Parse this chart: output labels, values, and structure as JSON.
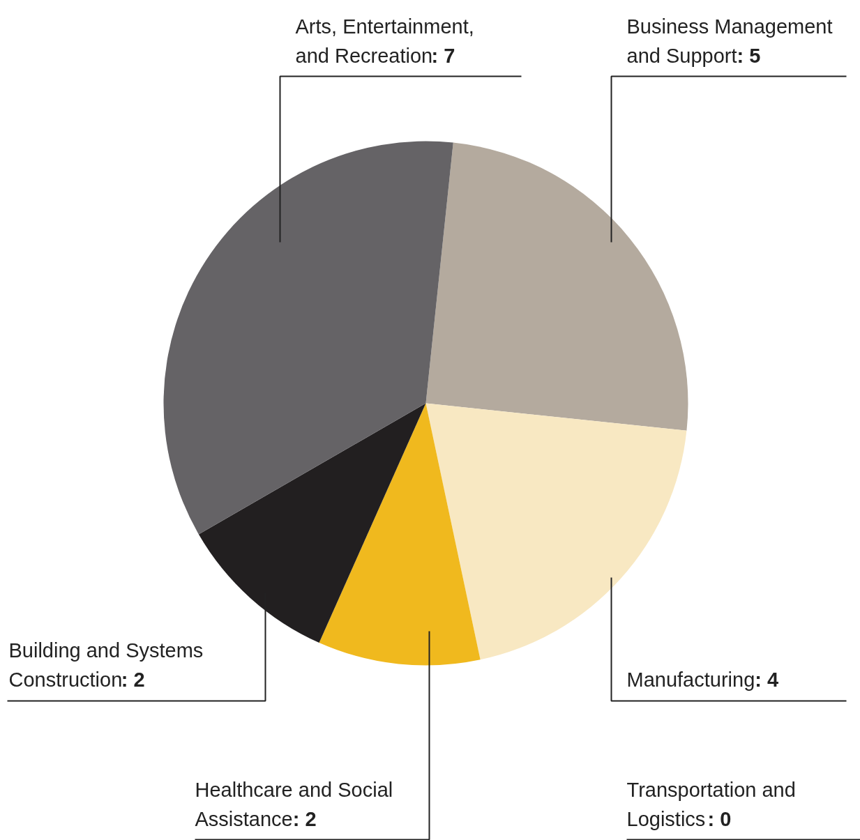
{
  "chart_data": {
    "type": "pie",
    "categories": [
      "Business Management and Support",
      "Manufacturing",
      "Transportation and Logistics",
      "Healthcare and Social Assistance",
      "Building and Systems Construction",
      "Arts, Entertainment, and Recreation"
    ],
    "values": [
      5,
      4,
      0,
      2,
      2,
      7
    ],
    "value_labels": [
      ": 5",
      ": 4",
      ": 0",
      ": 2",
      ": 2",
      ": 7"
    ],
    "colors": [
      "#b4aa9e",
      "#f8e8c2",
      "#dcdcdc",
      "#f0b91e",
      "#221f20",
      "#656366"
    ]
  }
}
